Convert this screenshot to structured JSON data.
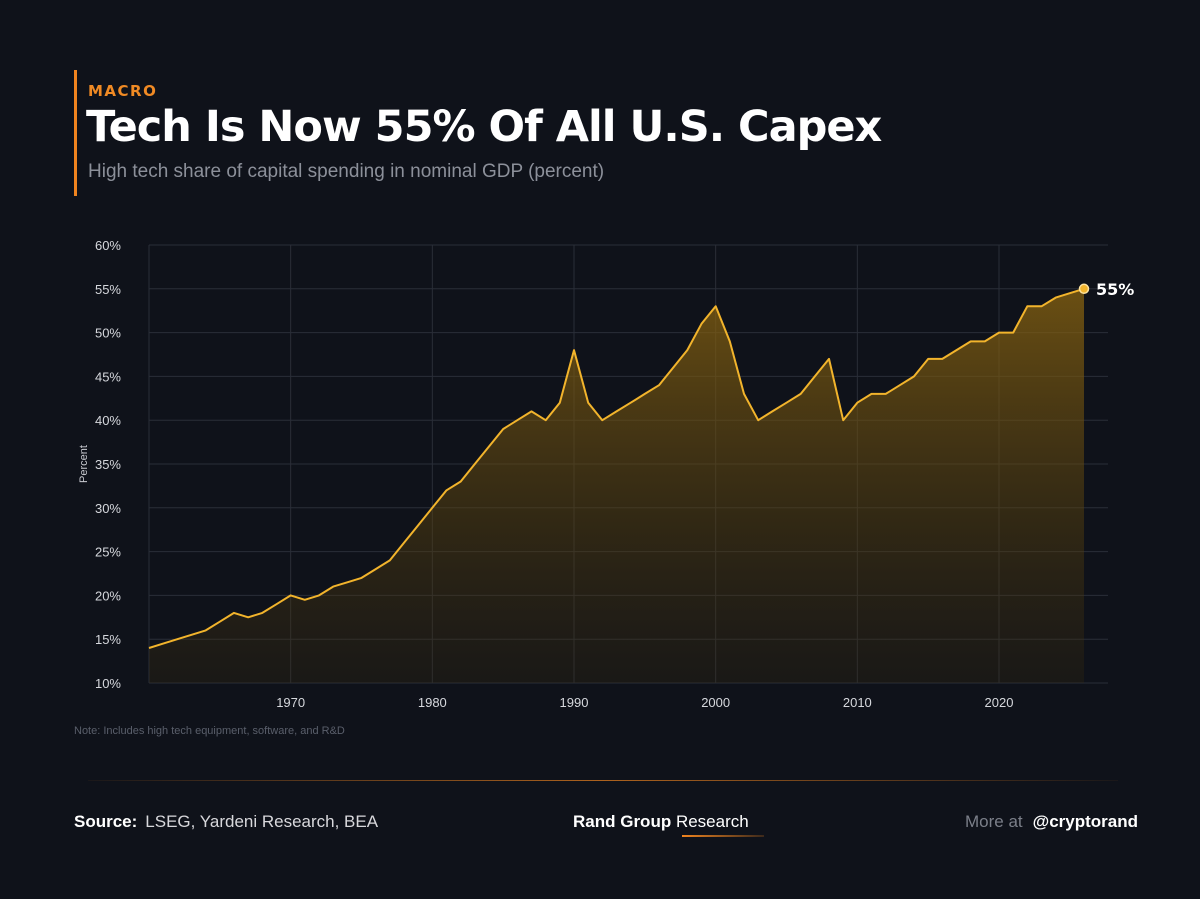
{
  "header": {
    "category": "MACRO",
    "title": "Tech Is Now 55% Of All U.S. Capex",
    "subtitle": "High tech share of capital spending in nominal GDP (percent)"
  },
  "note": "Note: Includes high tech equipment, software, and R&D",
  "footer": {
    "source_label": "Source:",
    "source_text": "LSEG, Yardeni Research, BEA",
    "brand_bold": "Rand Group",
    "brand_regular": "Research",
    "more_label": "More at",
    "handle": "@cryptorand"
  },
  "colors": {
    "background": "#0f121a",
    "accent": "#f0841f",
    "line": "#f2b42c"
  },
  "chart_data": {
    "type": "area",
    "ylabel": "Percent",
    "xlabel": "",
    "ylim": [
      10,
      60
    ],
    "xlim": [
      1960,
      2026
    ],
    "yticks": [
      10,
      15,
      20,
      25,
      30,
      35,
      40,
      45,
      50,
      55,
      60
    ],
    "ytick_labels": [
      "10%",
      "15%",
      "20%",
      "25%",
      "30%",
      "35%",
      "40%",
      "45%",
      "50%",
      "55%",
      "60%"
    ],
    "xticks": [
      1970,
      1980,
      1990,
      2000,
      2010,
      2020
    ],
    "xtick_labels": [
      "1970",
      "1980",
      "1990",
      "2000",
      "2010",
      "2020"
    ],
    "grid": true,
    "end_label": "55%",
    "series": [
      {
        "x": [
          1960,
          1961,
          1962,
          1963,
          1964,
          1965,
          1966,
          1967,
          1968,
          1969,
          1970,
          1971,
          1972,
          1973,
          1974,
          1975,
          1976,
          1977,
          1978,
          1979,
          1980,
          1981,
          1982,
          1983,
          1984,
          1985,
          1986,
          1987,
          1988,
          1989,
          1990,
          1991,
          1992,
          1993,
          1994,
          1995,
          1996,
          1997,
          1998,
          1999,
          2000,
          2001,
          2002,
          2003,
          2004,
          2005,
          2006,
          2007,
          2008,
          2009,
          2010,
          2011,
          2012,
          2013,
          2014,
          2015,
          2016,
          2017,
          2018,
          2019,
          2020,
          2021,
          2022,
          2023,
          2024,
          2025,
          2026
        ],
        "values": [
          14,
          14.5,
          15,
          15.5,
          16,
          17,
          18,
          17.5,
          18,
          19,
          20,
          19.5,
          20,
          21,
          21.5,
          22,
          23,
          24,
          26,
          28,
          30,
          32,
          33,
          35,
          37,
          39,
          40,
          41,
          40,
          42,
          48,
          42,
          40,
          41,
          42,
          43,
          44,
          46,
          48,
          51,
          53,
          49,
          43,
          40,
          41,
          42,
          43,
          45,
          47,
          40,
          42,
          43,
          43,
          44,
          45,
          47,
          47,
          48,
          49,
          49,
          50,
          50,
          53,
          53,
          54,
          54.5,
          55
        ]
      }
    ]
  }
}
